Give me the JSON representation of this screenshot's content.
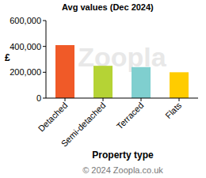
{
  "chart_data": {
    "type": "bar",
    "title": "Avg values (Dec 2024)",
    "x_label": "Property type",
    "y_label": "£",
    "watermark": "Zoopla",
    "footer": "© 2024 Zoopla.co.uk",
    "categories": [
      "Detached",
      "Semi-detached",
      "Terraced",
      "Flats"
    ],
    "values": [
      410000,
      250000,
      240000,
      200000
    ],
    "colors": [
      "#f05a28",
      "#b5d335",
      "#7fcfcf",
      "#ffcc00"
    ],
    "ylim": [
      0,
      600000
    ],
    "yticks": [
      0,
      {
        "value": 200000,
        "label": "200,000"
      },
      {
        "value": 400000,
        "label": "400,000"
      },
      {
        "value": 600000,
        "label": "600,000"
      }
    ],
    "grid": false
  }
}
